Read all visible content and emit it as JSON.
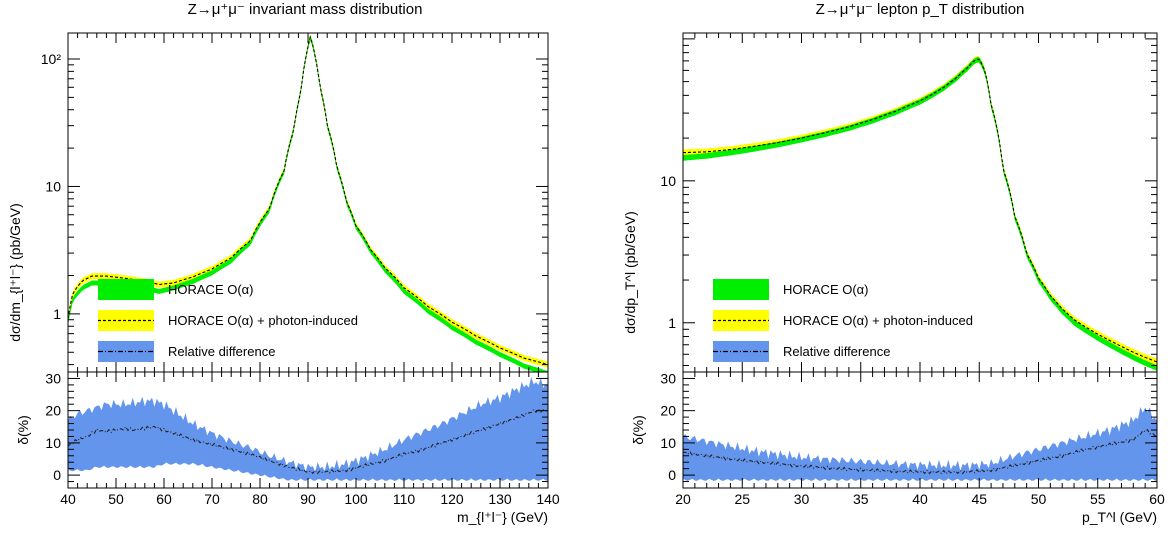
{
  "chart_data": [
    {
      "type": "line",
      "title": "Z→μ⁺μ⁻ invariant mass distribution",
      "xlabel": "m_{l⁺l⁻} (GeV)",
      "ylabel": "dσ/dm_{l⁺l⁻} (pb/GeV)",
      "ratio_ylabel": "δ(%)",
      "xlim": [
        40,
        140
      ],
      "ylim": [
        0.35,
        160
      ],
      "y_scale": "log",
      "ratio_ylim": [
        -4,
        32
      ],
      "x_ticks": [
        40,
        50,
        60,
        70,
        80,
        90,
        100,
        110,
        120,
        130,
        140
      ],
      "y_ticks": [
        {
          "value": 1,
          "label": "1"
        },
        {
          "value": 10,
          "label": "10"
        },
        {
          "value": 100,
          "label": "10²"
        }
      ],
      "ratio_ticks": [
        0,
        10,
        20,
        30
      ],
      "legend_position": "lower-left",
      "series": [
        {
          "name": "HORACE O(α)",
          "style": "green-band",
          "color": "#00ee00",
          "x": [
            40,
            41,
            43,
            45,
            48,
            52,
            56,
            59,
            62,
            66,
            70,
            74,
            78,
            82,
            85,
            87,
            88.5,
            89.5,
            90.5,
            91.5,
            92.5,
            94,
            96,
            98,
            100,
            103,
            106,
            110,
            115,
            120,
            125,
            130,
            135,
            140
          ],
          "y": [
            0.85,
            1.3,
            1.6,
            1.75,
            1.75,
            1.7,
            1.6,
            1.5,
            1.6,
            1.8,
            2.1,
            2.6,
            3.6,
            6.5,
            13,
            27,
            55,
            100,
            150,
            105,
            60,
            30,
            14,
            7.5,
            4.8,
            3.1,
            2.2,
            1.5,
            1.05,
            0.78,
            0.6,
            0.48,
            0.39,
            0.34
          ]
        },
        {
          "name": "HORACE O(α) + photon-induced",
          "style": "yellow-band-dashed",
          "color": "#ffff00",
          "x": [
            40,
            41,
            43,
            45,
            48,
            52,
            56,
            59,
            62,
            66,
            70,
            74,
            78,
            82,
            85,
            87,
            88.5,
            89.5,
            90.5,
            91.5,
            92.5,
            94,
            96,
            98,
            100,
            103,
            106,
            110,
            115,
            120,
            125,
            130,
            135,
            140
          ],
          "y": [
            0.92,
            1.45,
            1.82,
            1.98,
            1.98,
            1.9,
            1.8,
            1.7,
            1.75,
            1.95,
            2.25,
            2.75,
            3.75,
            6.7,
            13.2,
            27.2,
            55.2,
            100.3,
            150.5,
            105.4,
            60.4,
            30.2,
            14.2,
            7.6,
            4.9,
            3.2,
            2.3,
            1.6,
            1.14,
            0.86,
            0.67,
            0.54,
            0.45,
            0.4
          ]
        },
        {
          "name": "Relative difference",
          "style": "blue-band-dashdot",
          "color": "#6495ed",
          "x": [
            40,
            42,
            44,
            46,
            48,
            50,
            52,
            54,
            56,
            58,
            60,
            63,
            66,
            70,
            74,
            78,
            82,
            86,
            90,
            94,
            98,
            102,
            106,
            110,
            114,
            118,
            122,
            126,
            130,
            134,
            137,
            140
          ],
          "y": [
            9,
            11,
            12,
            14,
            13.5,
            14,
            14.5,
            14,
            14.5,
            15,
            14,
            12.5,
            11,
            9.5,
            8,
            6.5,
            4.5,
            2.5,
            1,
            1,
            1.5,
            3,
            4.5,
            6.5,
            8,
            10,
            12,
            14,
            16,
            18,
            20,
            20
          ],
          "band_upper": [
            17,
            19,
            20,
            21,
            22,
            22,
            22,
            22.5,
            23,
            23,
            22,
            19,
            16,
            13,
            10.5,
            8.5,
            6,
            4,
            2.5,
            2.5,
            3.5,
            5.5,
            8,
            11,
            13.5,
            16,
            19,
            22,
            24,
            27,
            29,
            28
          ],
          "band_lower": [
            2,
            2,
            2,
            3,
            3,
            3,
            3,
            3,
            3,
            3,
            4,
            4,
            4,
            3,
            2,
            1,
            0,
            -1,
            -1,
            -1,
            -1,
            -1,
            -1,
            -1,
            -1,
            -1,
            -1,
            -1,
            -1,
            -1,
            -1,
            -1
          ]
        }
      ]
    },
    {
      "type": "line",
      "title": "Z→μ⁺μ⁻ lepton p_T distribution",
      "xlabel": "p_T^l (GeV)",
      "ylabel": "dσ/dp_T^l (pb/GeV)",
      "ratio_ylabel": "δ(%)",
      "xlim": [
        20,
        60
      ],
      "ylim": [
        0.45,
        110
      ],
      "y_scale": "log",
      "ratio_ylim": [
        -4,
        32
      ],
      "x_ticks": [
        20,
        25,
        30,
        35,
        40,
        45,
        50,
        55,
        60
      ],
      "y_ticks": [
        {
          "value": 1,
          "label": "1"
        },
        {
          "value": 10,
          "label": "10"
        }
      ],
      "ratio_ticks": [
        0,
        10,
        20,
        30
      ],
      "legend_position": "lower-left",
      "series": [
        {
          "name": "HORACE O(α)",
          "style": "green-band",
          "color": "#00ee00",
          "x": [
            20,
            22,
            24,
            26,
            28,
            30,
            32,
            34,
            36,
            38,
            40,
            41,
            42,
            43,
            44,
            44.6,
            45,
            45.5,
            46,
            47,
            48,
            49,
            50,
            51,
            52,
            53,
            54,
            55,
            56,
            57,
            58,
            59,
            60
          ],
          "y": [
            14.5,
            15.0,
            15.8,
            16.8,
            18.0,
            19.5,
            21.3,
            23.5,
            26.5,
            30.5,
            36,
            40,
            45,
            52,
            62,
            70,
            72,
            58,
            34,
            12,
            5.5,
            3.0,
            2.0,
            1.5,
            1.2,
            1.0,
            0.88,
            0.78,
            0.7,
            0.63,
            0.57,
            0.52,
            0.48
          ]
        },
        {
          "name": "HORACE O(α) + photon-induced",
          "style": "yellow-band-dashed",
          "color": "#ffff00",
          "x": [
            20,
            22,
            24,
            26,
            28,
            30,
            32,
            34,
            36,
            38,
            40,
            41,
            42,
            43,
            44,
            44.6,
            45,
            45.5,
            46,
            47,
            48,
            49,
            50,
            51,
            52,
            53,
            54,
            55,
            56,
            57,
            58,
            59,
            60
          ],
          "y": [
            15.8,
            16.0,
            16.6,
            17.5,
            18.6,
            20.0,
            21.8,
            24.0,
            27.0,
            31.0,
            36.5,
            40.5,
            45.5,
            52.5,
            62.5,
            70.5,
            72.5,
            58.5,
            34.5,
            12.2,
            5.6,
            3.07,
            2.06,
            1.55,
            1.25,
            1.05,
            0.93,
            0.83,
            0.75,
            0.68,
            0.62,
            0.57,
            0.53
          ]
        },
        {
          "name": "Relative difference",
          "style": "blue-band-dashdot",
          "color": "#6495ed",
          "x": [
            20,
            22,
            24,
            26,
            28,
            30,
            32,
            34,
            36,
            38,
            40,
            42,
            44,
            46,
            48,
            50,
            52,
            54,
            56,
            58,
            59,
            60
          ],
          "y": [
            7,
            6,
            5,
            4.2,
            3.5,
            2.8,
            2.3,
            1.8,
            1.5,
            1.2,
            1.0,
            0.9,
            1.0,
            1.5,
            3,
            4.5,
            6,
            8,
            9.5,
            11,
            14,
            12
          ],
          "band_upper": [
            12,
            10.5,
            9,
            7.5,
            6.5,
            5.5,
            5,
            4.5,
            4,
            3.5,
            3.2,
            3,
            3,
            3.5,
            6,
            8,
            10,
            12,
            14,
            17,
            21,
            17
          ],
          "band_lower": [
            -1,
            -1,
            -1,
            -1,
            -1,
            -1,
            -1,
            -1,
            -1,
            -1,
            -1,
            -1,
            -1,
            -1,
            -1,
            -1,
            -1,
            -1,
            -1,
            -1,
            -1,
            -1
          ]
        }
      ]
    }
  ]
}
